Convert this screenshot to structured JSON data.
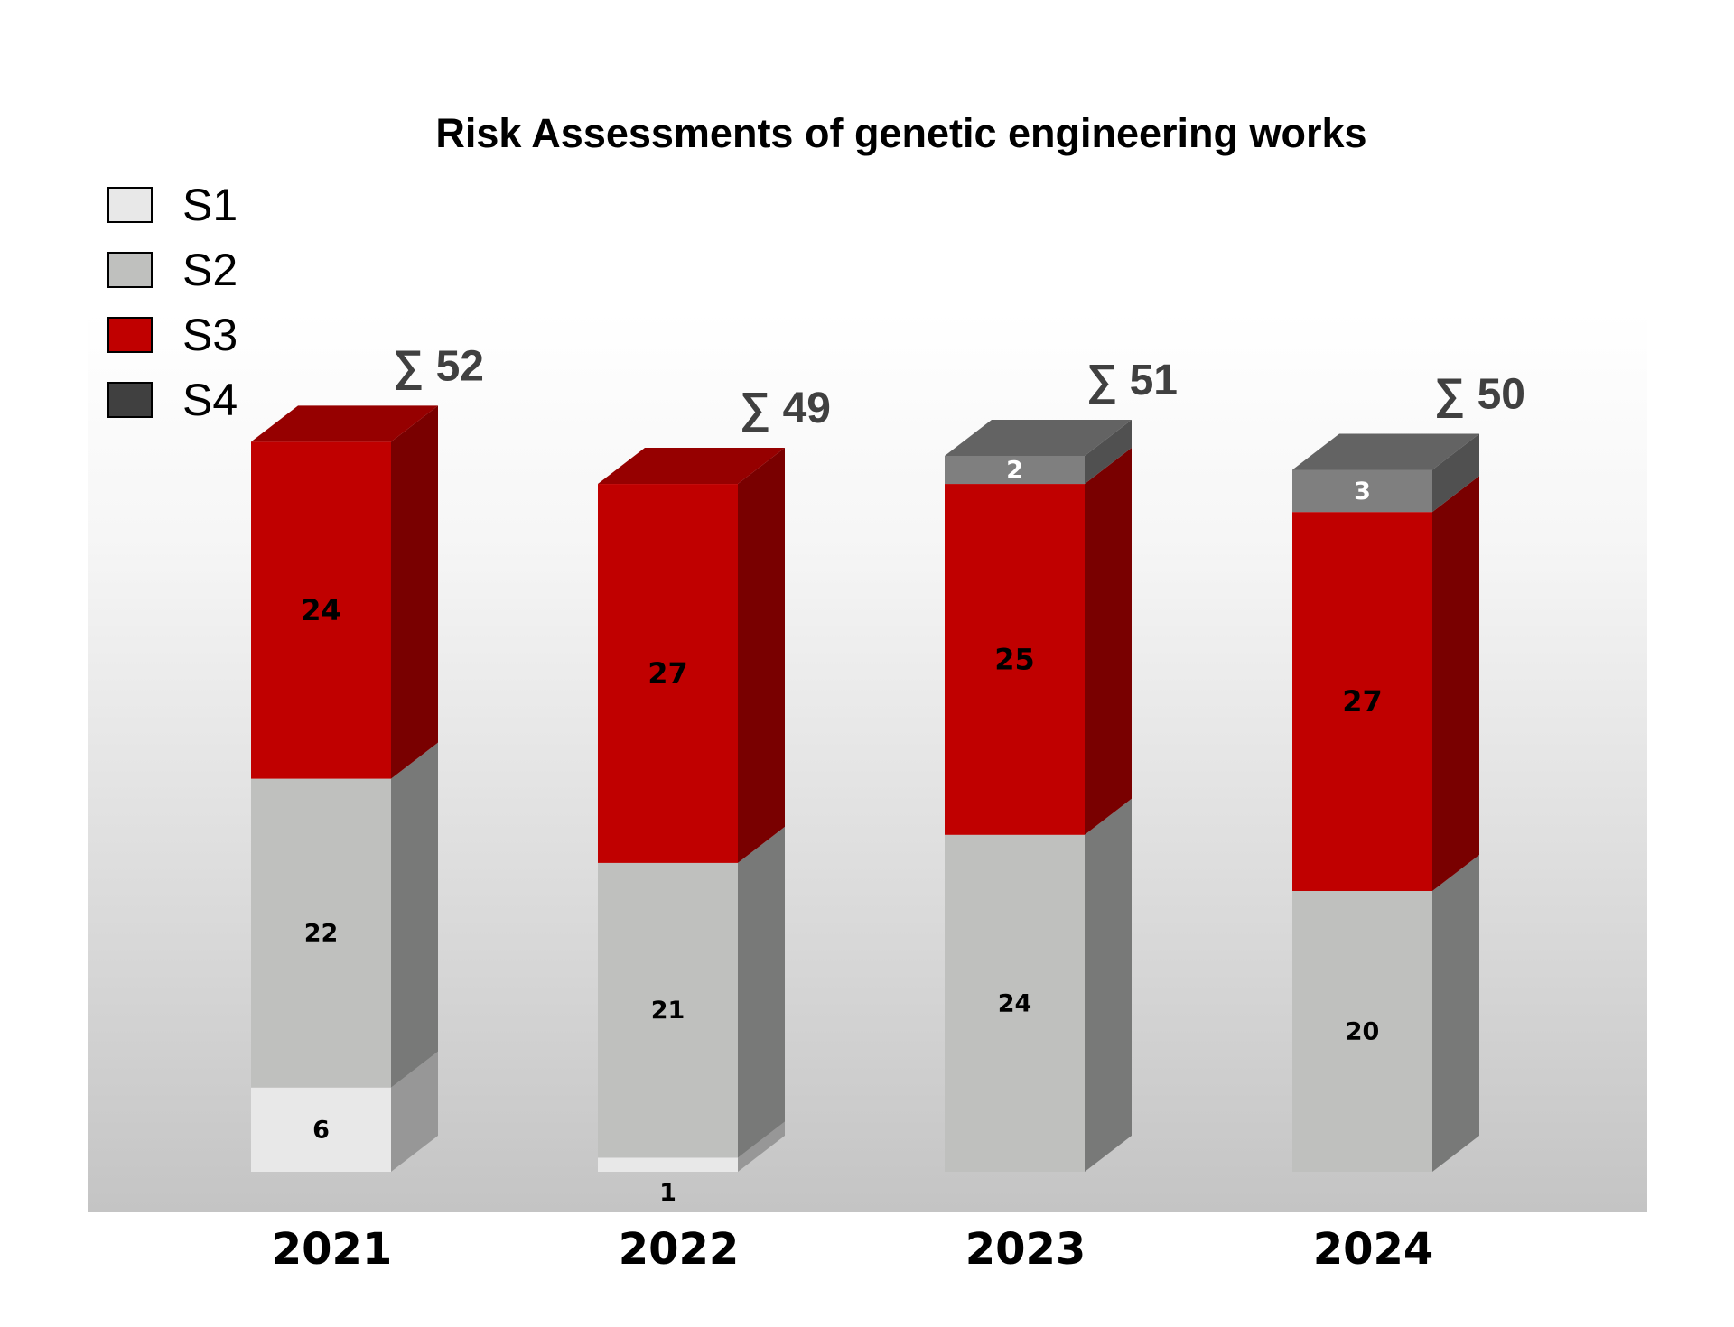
{
  "chart_data": {
    "type": "bar",
    "stacked": true,
    "title": "Risk Assessments of genetic engineering works",
    "categories": [
      "2021",
      "2022",
      "2023",
      "2024"
    ],
    "series": [
      {
        "name": "S1",
        "values": [
          6,
          1,
          0,
          0
        ],
        "color": "#e8e8e8"
      },
      {
        "name": "S2",
        "values": [
          22,
          21,
          24,
          20
        ],
        "color": "#bfc0be"
      },
      {
        "name": "S3",
        "values": [
          24,
          27,
          25,
          27
        ],
        "color": "#c00000"
      },
      {
        "name": "S4",
        "values": [
          0,
          0,
          2,
          3
        ],
        "color": "#404040"
      }
    ],
    "totals": [
      "∑ 52",
      "∑ 49",
      "∑ 51",
      "∑ 50"
    ],
    "legend": {
      "position": "top-left"
    },
    "grid": false,
    "ylim": [
      0,
      60
    ]
  }
}
